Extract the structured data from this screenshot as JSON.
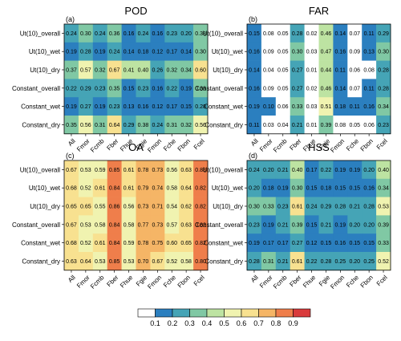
{
  "chart_data": [
    {
      "type": "heatmap",
      "panel_label": "(a)",
      "title": "POD",
      "rows": [
        "Ut(10)_overall",
        "Ut(10)_wet",
        "Ut(10)_dry",
        "Constant_overall",
        "Constant_wet",
        "Constant_dry"
      ],
      "columns": [
        "All",
        "Fmor",
        "Fcmb",
        "Fber",
        "Fhue",
        "Fgie",
        "Fmon",
        "Fche",
        "Fbon",
        "Fcel"
      ],
      "values": [
        [
          0.24,
          0.3,
          0.24,
          0.36,
          0.16,
          0.24,
          0.16,
          0.23,
          0.2,
          0.38
        ],
        [
          0.19,
          0.28,
          0.19,
          0.24,
          0.14,
          0.18,
          0.12,
          0.17,
          0.14,
          0.3
        ],
        [
          0.37,
          0.57,
          0.32,
          0.67,
          0.41,
          0.4,
          0.26,
          0.32,
          0.34,
          0.6
        ],
        [
          0.22,
          0.29,
          0.23,
          0.35,
          0.15,
          0.23,
          0.16,
          0.22,
          0.19,
          0.38
        ],
        [
          0.19,
          0.27,
          0.19,
          0.23,
          0.13,
          0.16,
          0.12,
          0.17,
          0.15,
          0.28
        ],
        [
          0.35,
          0.56,
          0.31,
          0.64,
          0.29,
          0.38,
          0.24,
          0.31,
          0.32,
          0.56
        ]
      ]
    },
    {
      "type": "heatmap",
      "panel_label": "(b)",
      "title": "FAR",
      "rows": [
        "Ut(10)_overall",
        "Ut(10)_wet",
        "Ut(10)_dry",
        "Constant_overall",
        "Constant_wet",
        "Constant_dry"
      ],
      "columns": [
        "All",
        "Fmor",
        "Fcmb",
        "Fber",
        "Fhue",
        "Fgie",
        "Fmon",
        "Fche",
        "Fbon",
        "Fcel"
      ],
      "values": [
        [
          0.15,
          0.08,
          0.05,
          0.28,
          0.02,
          0.46,
          0.14,
          0.07,
          0.11,
          0.29
        ],
        [
          0.16,
          0.09,
          0.05,
          0.3,
          0.03,
          0.47,
          0.16,
          0.09,
          0.13,
          0.3
        ],
        [
          0.14,
          0.04,
          0.05,
          0.27,
          0.01,
          0.44,
          0.11,
          0.06,
          0.08,
          0.28
        ],
        [
          0.16,
          0.09,
          0.05,
          0.27,
          0.02,
          0.46,
          0.14,
          0.07,
          0.11,
          0.28
        ],
        [
          0.19,
          0.1,
          0.06,
          0.33,
          0.03,
          0.51,
          0.18,
          0.11,
          0.16,
          0.34
        ],
        [
          0.11,
          0.03,
          0.04,
          0.21,
          0.01,
          0.39,
          0.08,
          0.05,
          0.06,
          0.23
        ]
      ]
    },
    {
      "type": "heatmap",
      "panel_label": "(c)",
      "title": "OA",
      "rows": [
        "Ut(10)_overall",
        "Ut(10)_wet",
        "Ut(10)_dry",
        "Constant_overall",
        "Constant_wet",
        "Constant_dry"
      ],
      "columns": [
        "All",
        "Fmor",
        "Fcmb",
        "Fber",
        "Fhue",
        "Fgie",
        "Fmon",
        "Fche",
        "Fbon",
        "Fcel"
      ],
      "values": [
        [
          0.67,
          0.53,
          0.59,
          0.85,
          0.61,
          0.78,
          0.73,
          0.56,
          0.63,
          0.83
        ],
        [
          0.68,
          0.52,
          0.61,
          0.84,
          0.61,
          0.79,
          0.74,
          0.58,
          0.64,
          0.82
        ],
        [
          0.65,
          0.65,
          0.55,
          0.86,
          0.56,
          0.73,
          0.71,
          0.54,
          0.62,
          0.82
        ],
        [
          0.67,
          0.53,
          0.58,
          0.84,
          0.58,
          0.77,
          0.73,
          0.57,
          0.63,
          0.82
        ],
        [
          0.68,
          0.52,
          0.61,
          0.84,
          0.59,
          0.78,
          0.75,
          0.6,
          0.65,
          0.82
        ],
        [
          0.63,
          0.64,
          0.53,
          0.85,
          0.53,
          0.7,
          0.67,
          0.52,
          0.58,
          0.8
        ]
      ]
    },
    {
      "type": "heatmap",
      "panel_label": "(d)",
      "title": "HSS",
      "rows": [
        "Ut(10)_overall",
        "Ut(10)_wet",
        "Ut(10)_dry",
        "Constant_overall",
        "Constant_wet",
        "Constant_dry"
      ],
      "columns": [
        "All",
        "Fmor",
        "Fcmb",
        "Fber",
        "Fhue",
        "Fgie",
        "Fmon",
        "Fche",
        "Fbon",
        "Fcel"
      ],
      "values": [
        [
          0.24,
          0.2,
          0.21,
          0.4,
          0.17,
          0.22,
          0.19,
          0.19,
          0.2,
          0.4
        ],
        [
          0.2,
          0.18,
          0.19,
          0.3,
          0.15,
          0.18,
          0.15,
          0.15,
          0.16,
          0.34
        ],
        [
          0.3,
          0.33,
          0.23,
          0.61,
          0.24,
          0.29,
          0.28,
          0.21,
          0.28,
          0.53
        ],
        [
          0.23,
          0.19,
          0.21,
          0.39,
          0.15,
          0.21,
          0.19,
          0.2,
          0.2,
          0.39
        ],
        [
          0.19,
          0.17,
          0.17,
          0.27,
          0.12,
          0.15,
          0.16,
          0.15,
          0.15,
          0.33
        ],
        [
          0.28,
          0.31,
          0.21,
          0.61,
          0.22,
          0.28,
          0.25,
          0.2,
          0.25,
          0.52
        ]
      ]
    }
  ],
  "colorbar": {
    "ticks": [
      "0.1",
      "0.2",
      "0.3",
      "0.4",
      "0.5",
      "0.6",
      "0.7",
      "0.8",
      "0.9"
    ],
    "colors": [
      "#ffffff",
      "#2b7fbf",
      "#45a4b6",
      "#80c8a4",
      "#bde3a2",
      "#f0f3b0",
      "#f8e190",
      "#f5b566",
      "#ef7e4b",
      "#d93b3c"
    ]
  }
}
